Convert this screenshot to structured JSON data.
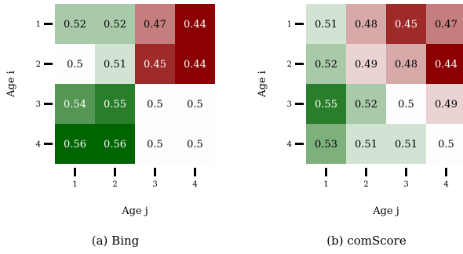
{
  "chart_data": [
    {
      "type": "heatmap",
      "caption": "(a) Bing",
      "xlabel": "Age j",
      "ylabel": "Age i",
      "x_categories": [
        "1",
        "2",
        "3",
        "4"
      ],
      "y_categories": [
        "1",
        "2",
        "3",
        "4"
      ],
      "values": [
        [
          0.52,
          0.52,
          0.47,
          0.44
        ],
        [
          0.5,
          0.51,
          0.45,
          0.44
        ],
        [
          0.54,
          0.55,
          0.5,
          0.5
        ],
        [
          0.56,
          0.56,
          0.5,
          0.5
        ]
      ],
      "colormap": {
        "low": "#8b0000",
        "mid": "#fdfdfd",
        "high": "#006400",
        "center": 0.5,
        "range": 0.06
      }
    },
    {
      "type": "heatmap",
      "caption": "(b) comScore",
      "xlabel": "Age j",
      "ylabel": "Age i",
      "x_categories": [
        "1",
        "2",
        "3",
        "4"
      ],
      "y_categories": [
        "1",
        "2",
        "3",
        "4"
      ],
      "values": [
        [
          0.51,
          0.48,
          0.45,
          0.47
        ],
        [
          0.52,
          0.49,
          0.48,
          0.44
        ],
        [
          0.55,
          0.52,
          0.5,
          0.49
        ],
        [
          0.53,
          0.51,
          0.51,
          0.5
        ]
      ],
      "colormap": {
        "low": "#8b0000",
        "mid": "#fdfdfd",
        "high": "#006400",
        "center": 0.5,
        "range": 0.06
      }
    }
  ]
}
